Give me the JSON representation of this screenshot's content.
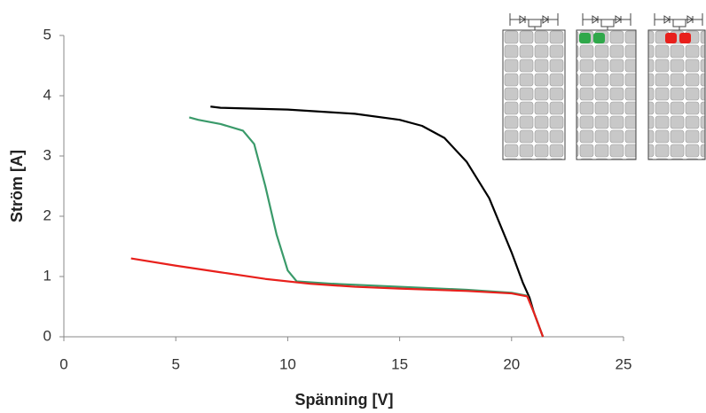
{
  "chart_data": {
    "type": "line",
    "x_label": "Spänning [V]",
    "y_label": "Ström [A]",
    "xlim": [
      0,
      25
    ],
    "xticks": [
      0,
      5,
      10,
      15,
      20,
      25
    ],
    "ylim": [
      0,
      5
    ],
    "yticks": [
      0,
      1,
      2,
      3,
      4,
      5
    ],
    "series": [
      {
        "color": "#000000",
        "x": [
          6.55,
          7,
          10,
          13,
          15,
          16,
          17,
          18,
          19,
          20,
          20.5,
          20.8,
          21,
          21.3,
          21.4
        ],
        "values": [
          3.82,
          3.8,
          3.77,
          3.7,
          3.6,
          3.5,
          3.3,
          2.9,
          2.3,
          1.4,
          0.9,
          0.65,
          0.4,
          0.1,
          0
        ]
      },
      {
        "color": "#3a9a6a",
        "x": [
          5.6,
          6,
          7,
          8,
          8.5,
          9,
          9.5,
          10,
          10.4,
          12,
          15,
          18,
          20,
          20.7,
          21,
          21.4
        ],
        "values": [
          3.64,
          3.6,
          3.53,
          3.42,
          3.2,
          2.5,
          1.7,
          1.1,
          0.92,
          0.88,
          0.83,
          0.78,
          0.73,
          0.68,
          0.4,
          0
        ]
      },
      {
        "color": "#e8201c",
        "x": [
          3,
          5,
          7,
          9,
          11,
          13,
          15,
          18,
          20,
          20.7,
          21,
          21.4
        ],
        "values": [
          1.3,
          1.18,
          1.07,
          0.96,
          0.88,
          0.83,
          0.8,
          0.76,
          0.72,
          0.67,
          0.4,
          0
        ]
      }
    ]
  }
}
